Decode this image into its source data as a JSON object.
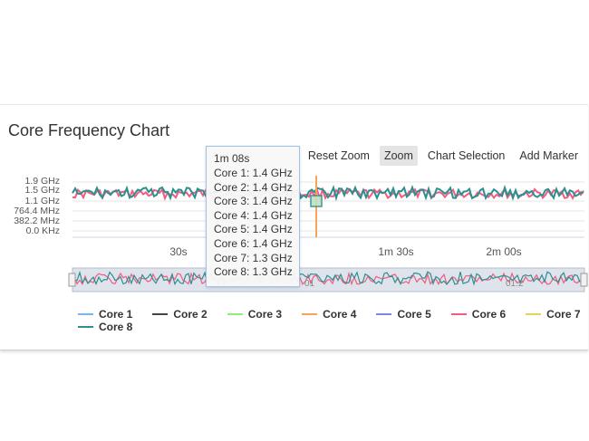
{
  "chart": {
    "title": "Core Frequency Chart",
    "toolbar": {
      "reset_zoom": "Reset Zoom",
      "zoom": "Zoom",
      "chart_selection": "Chart Selection",
      "add_marker": "Add Marker"
    },
    "y_ticks": [
      "1.9 GHz",
      "1.5 GHz",
      "1.1 GHz",
      "764.4 MHz",
      "382.2 MHz",
      "0.0 KHz"
    ],
    "x_ticks": [
      "30s",
      "1m 30s",
      "2m 00s"
    ],
    "navigator_labels": [
      "01",
      "01:2"
    ],
    "tooltip": {
      "time": "1m 08s",
      "rows": [
        "Core 1: 1.4 GHz",
        "Core 2: 1.4 GHz",
        "Core 3: 1.4 GHz",
        "Core 4: 1.4 GHz",
        "Core 5: 1.4 GHz",
        "Core 6: 1.4 GHz",
        "Core 7: 1.3 GHz",
        "Core 8: 1.3 GHz"
      ]
    },
    "legend": [
      {
        "label": "Core 1",
        "color": "#7cb5ec"
      },
      {
        "label": "Core 2",
        "color": "#434348"
      },
      {
        "label": "Core 3",
        "color": "#90ed7d"
      },
      {
        "label": "Core 4",
        "color": "#f7a35c"
      },
      {
        "label": "Core 5",
        "color": "#8085e9"
      },
      {
        "label": "Core 6",
        "color": "#f15c80"
      },
      {
        "label": "Core 7",
        "color": "#e4d354"
      },
      {
        "label": "Core 8",
        "color": "#2b908f"
      }
    ]
  }
}
